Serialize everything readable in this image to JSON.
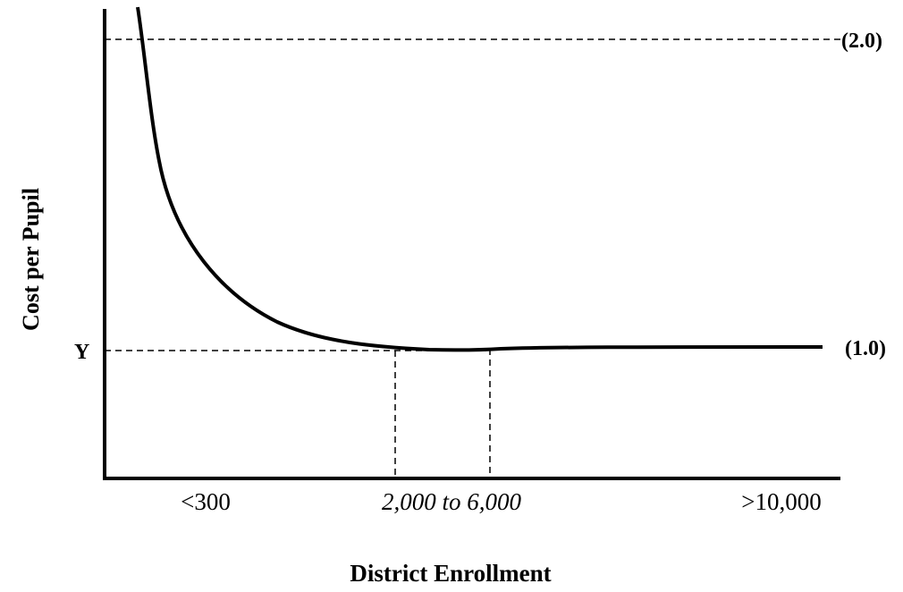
{
  "diagram": {
    "ylabel": "Cost per Pupil",
    "xlabel": "District Enrollment",
    "y_marker": "Y",
    "ratio_high": "(2.0)",
    "ratio_low": "(1.0)",
    "x_ticks": [
      "<300",
      "2,000 to 6,000",
      ">10,000"
    ]
  }
}
